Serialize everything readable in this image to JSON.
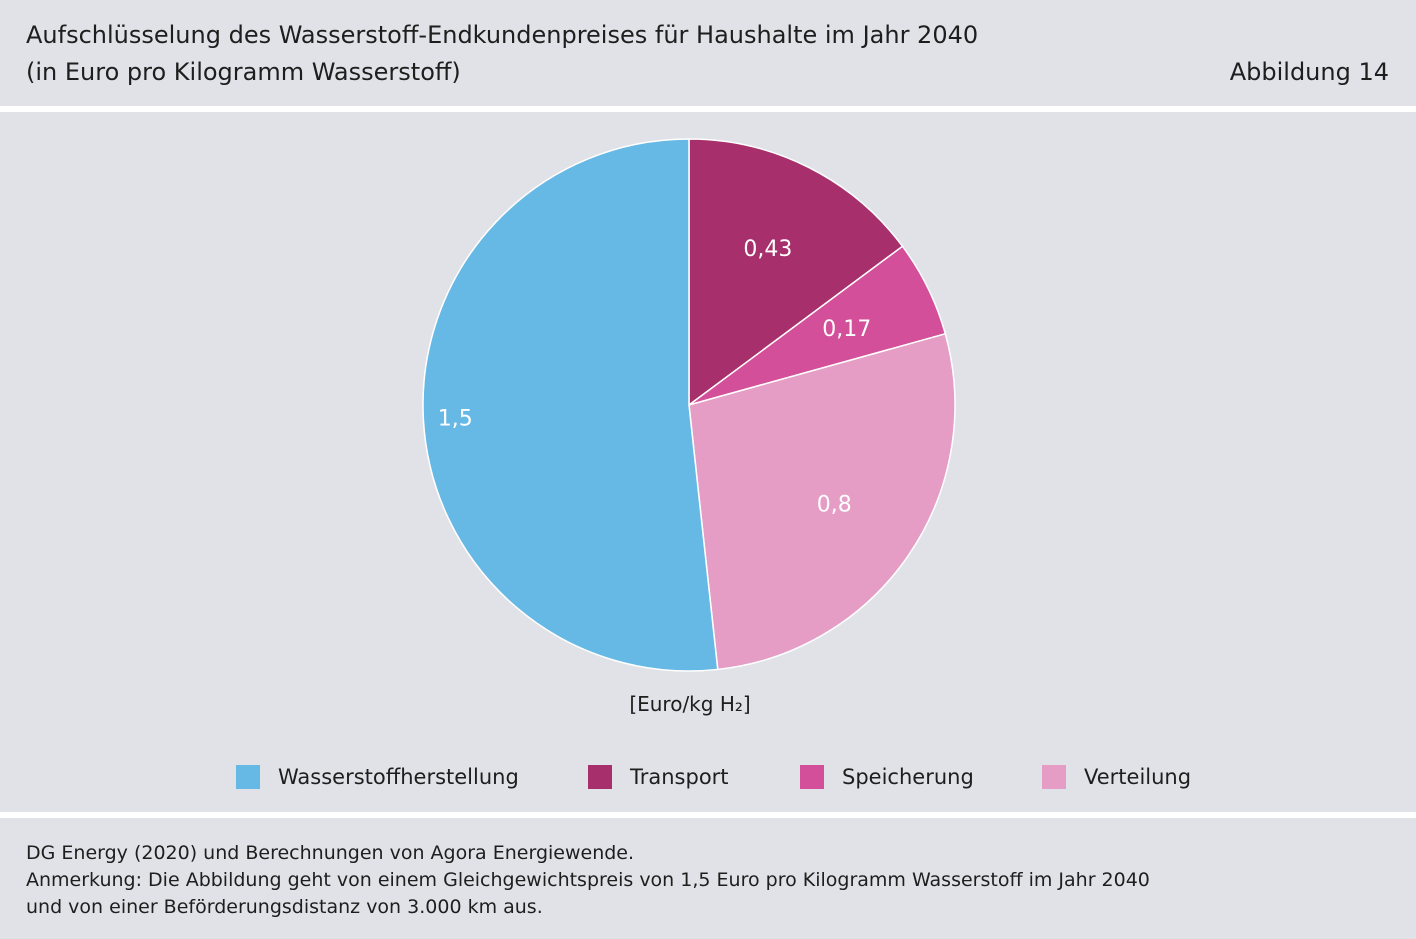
{
  "header": {
    "title_line1": "Aufschlüsselung des Wasserstoff-Endkundenpreises für Haushalte im Jahr 2040",
    "title_line2": "(in Euro pro Kilogramm Wasserstoff)",
    "figure_label": "Abbildung 14"
  },
  "chart_data": {
    "type": "pie",
    "title": "Aufschlüsselung des Wasserstoff-Endkundenpreises für Haushalte im Jahr 2040",
    "subtitle": "(in Euro pro Kilogramm Wasserstoff)",
    "unit_label": "[Euro/kg H₂]",
    "start": "12 o'clock, clockwise",
    "slices": [
      {
        "label": "Transport",
        "value": 0.43,
        "value_label": "0,43",
        "color": "#a72f6c"
      },
      {
        "label": "Speicherung",
        "value": 0.17,
        "value_label": "0,17",
        "color": "#d44f99"
      },
      {
        "label": "Verteilung",
        "value": 0.8,
        "value_label": "0,8",
        "color": "#e59dc6"
      },
      {
        "label": "Wasserstoffherstellung",
        "value": 1.5,
        "value_label": "1,5",
        "color": "#67b9e5"
      }
    ],
    "legend": [
      {
        "label": "Wasserstoffherstellung",
        "color": "#67b9e5"
      },
      {
        "label": "Transport",
        "color": "#a72f6c"
      },
      {
        "label": "Speicherung",
        "color": "#d44f99"
      },
      {
        "label": "Verteilung",
        "color": "#e59dc6"
      }
    ],
    "legend_position": "bottom"
  },
  "footer": {
    "source": "DG Energy (2020) und Berechnungen von Agora Energiewende.",
    "note_line1": "Anmerkung: Die Abbildung geht von einem Gleichgewichtspreis von 1,5 Euro pro Kilogramm Wasserstoff im Jahr 2040",
    "note_line2": "und von einer Beförderungsdistanz von 3.000 km aus."
  }
}
